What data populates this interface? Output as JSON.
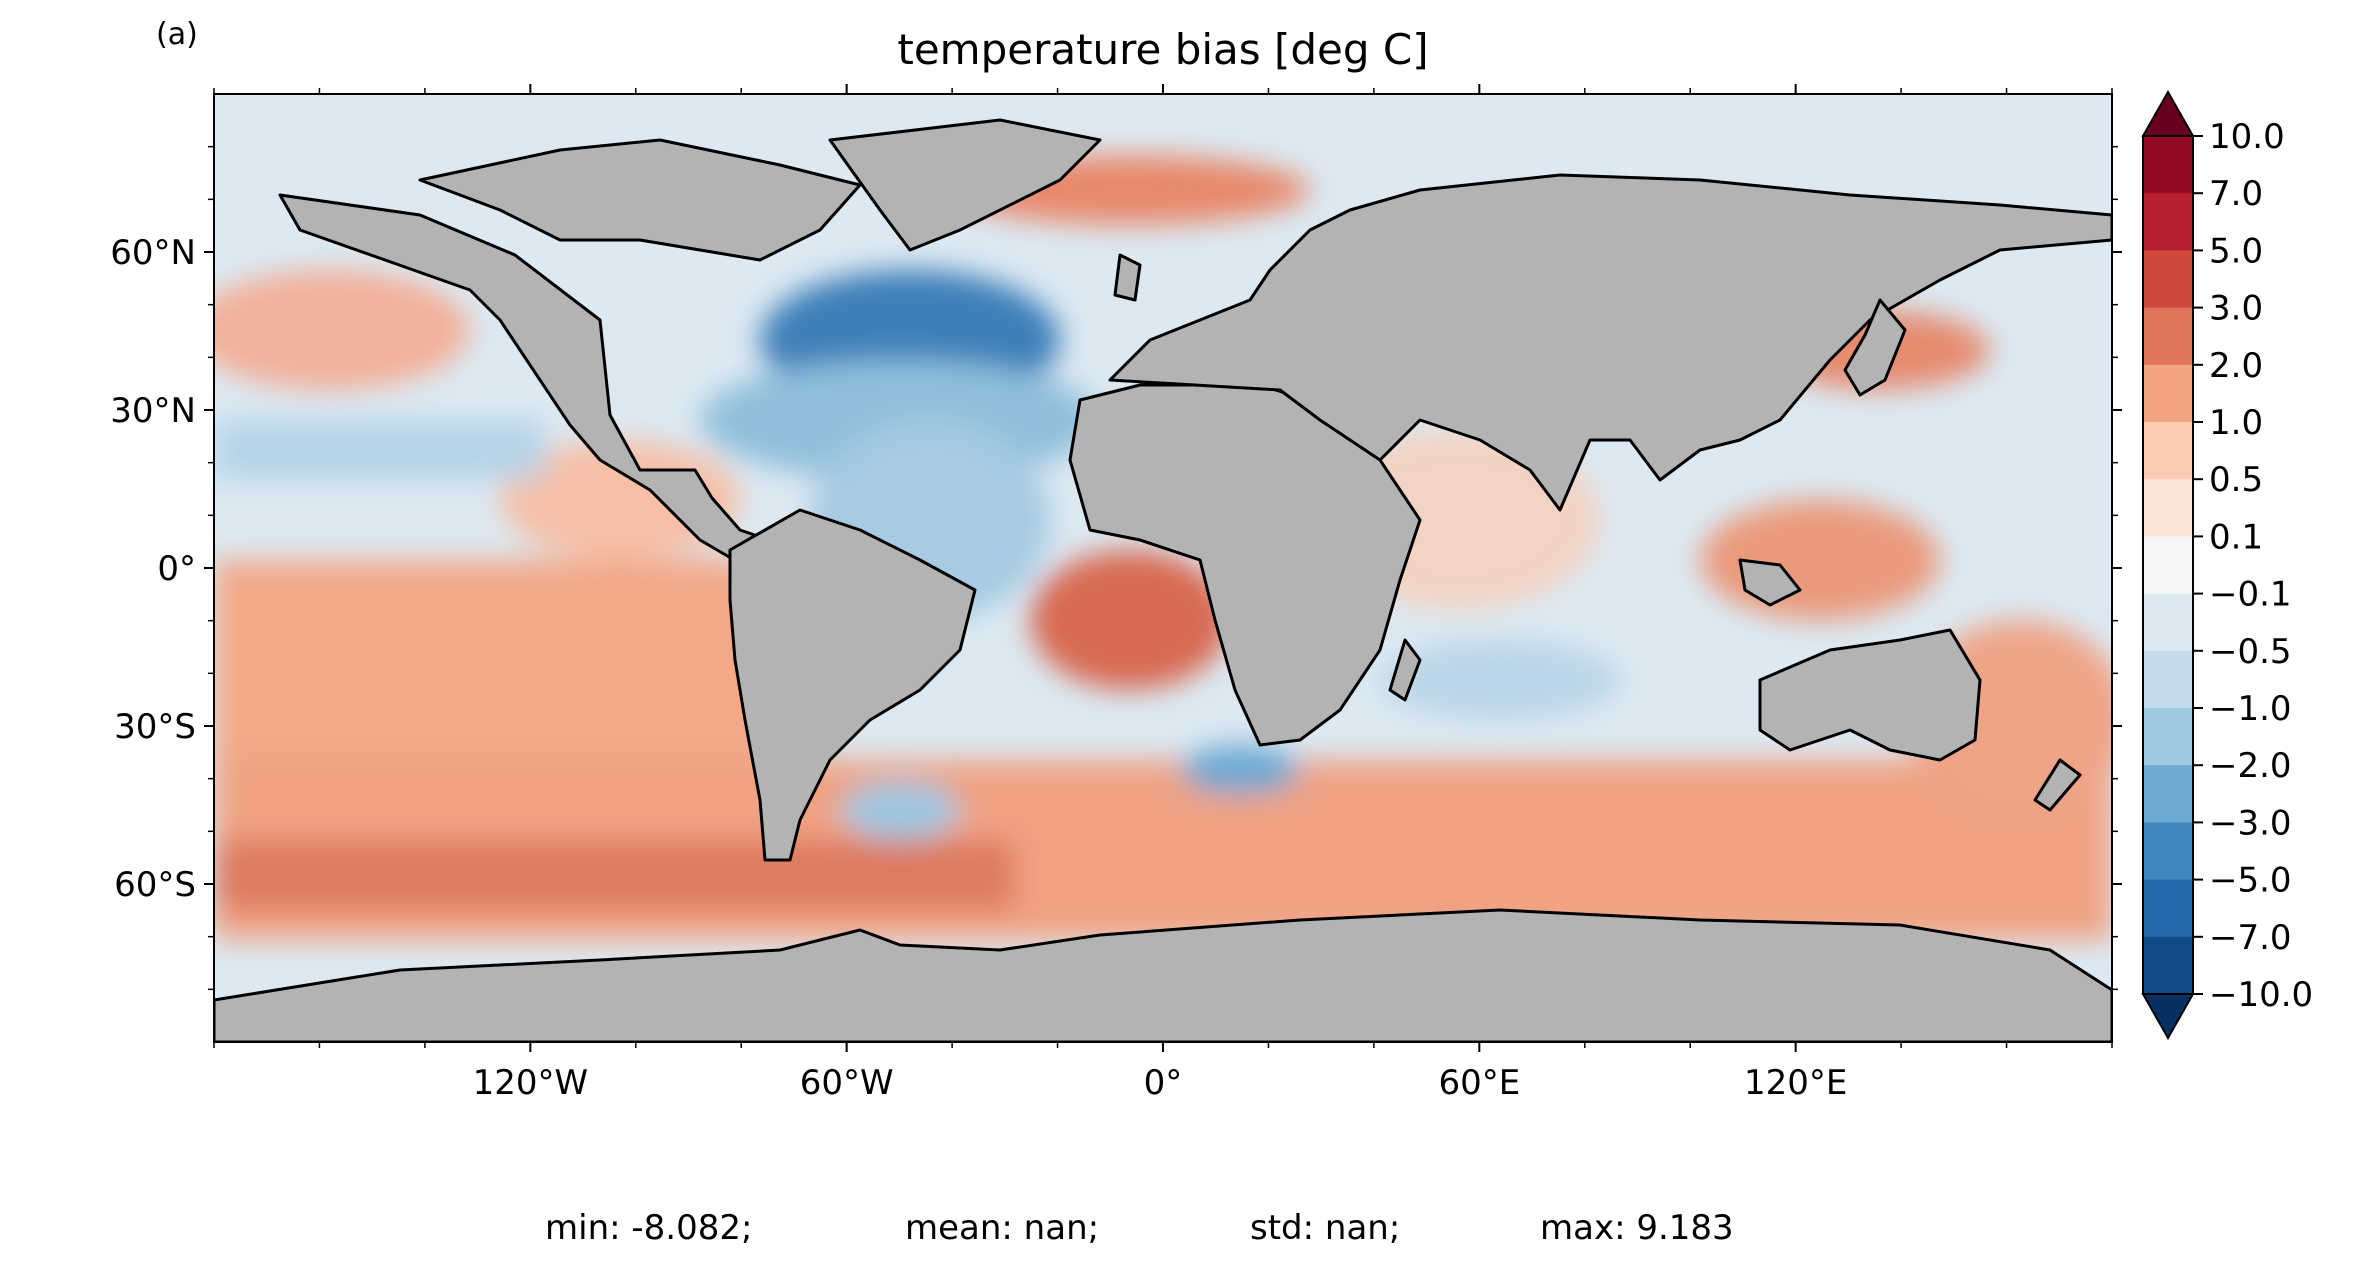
{
  "panel_label": "(a)",
  "title": "temperature bias [deg C]",
  "map": {
    "projection": "plate-carree",
    "lon_range": [
      -180,
      180
    ],
    "lat_range": [
      -90,
      90
    ],
    "land_color": "#b3b3b3",
    "coastline_color": "#000000",
    "lat_ticks": [
      {
        "value": 60,
        "label": "60°N"
      },
      {
        "value": 30,
        "label": "30°N"
      },
      {
        "value": 0,
        "label": "0°"
      },
      {
        "value": -30,
        "label": "30°S"
      },
      {
        "value": -60,
        "label": "60°S"
      }
    ],
    "lon_ticks": [
      {
        "value": -120,
        "label": "120°W"
      },
      {
        "value": -60,
        "label": "60°W"
      },
      {
        "value": 0,
        "label": "0°"
      },
      {
        "value": 60,
        "label": "60°E"
      },
      {
        "value": 120,
        "label": "120°E"
      }
    ]
  },
  "colorbar": {
    "levels": [
      "10.0",
      "7.0",
      "5.0",
      "3.0",
      "2.0",
      "1.0",
      "0.5",
      "0.1",
      "−0.1",
      "−0.5",
      "−1.0",
      "−2.0",
      "−3.0",
      "−5.0",
      "−7.0",
      "−10.0"
    ],
    "colors": [
      "#930b25",
      "#b8202f",
      "#d0473e",
      "#e07559",
      "#f3a481",
      "#fbcbb2",
      "#fbe5d8",
      "#f5f5f5",
      "#dde9f1",
      "#c3dbeb",
      "#9ecae1",
      "#6bacd0",
      "#3e88bf",
      "#2469ab",
      "#104a88"
    ],
    "over_color": "#67001f",
    "under_color": "#053061"
  },
  "stats": {
    "min": "min: -8.082;",
    "mean": "mean: nan;",
    "std": "std: nan;",
    "max": "max: 9.183"
  }
}
